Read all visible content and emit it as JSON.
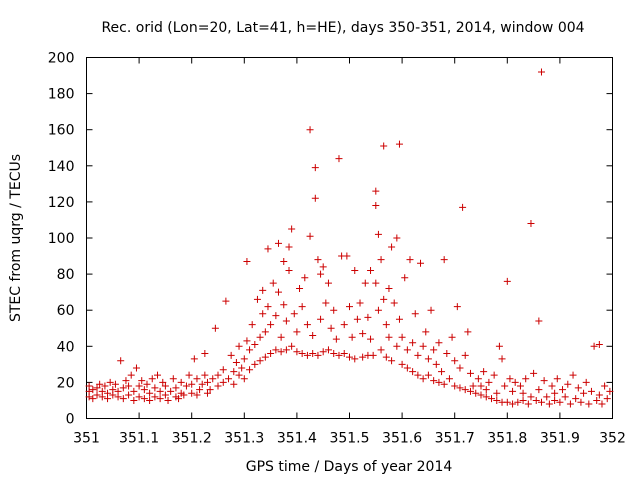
{
  "chart_data": {
    "type": "scatter",
    "title": "Rec. orid (Lon=20, Lat=41, h=HE), days 350-351, 2014, window 004",
    "xlabel": "GPS time / Days of year 2014",
    "ylabel": "STEC from uqrg / TECUs",
    "xlim": [
      351,
      352
    ],
    "ylim": [
      0,
      200
    ],
    "xticks": [
      "351",
      "351.1",
      "351.2",
      "351.3",
      "351.4",
      "351.5",
      "351.6",
      "351.7",
      "351.8",
      "351.9",
      "352"
    ],
    "yticks": [
      "0",
      "20",
      "40",
      "60",
      "80",
      "100",
      "120",
      "140",
      "160",
      "180",
      "200"
    ],
    "grid": false,
    "legend": "none",
    "marker": "plus",
    "color": "#cc0000",
    "points": [
      [
        351.005,
        12
      ],
      [
        351.005,
        15
      ],
      [
        351.005,
        18
      ],
      [
        351.012,
        11
      ],
      [
        351.012,
        16
      ],
      [
        351.02,
        13
      ],
      [
        351.02,
        17
      ],
      [
        351.025,
        19
      ],
      [
        351.03,
        12
      ],
      [
        351.03,
        15
      ],
      [
        351.035,
        18
      ],
      [
        351.04,
        11
      ],
      [
        351.04,
        14
      ],
      [
        351.045,
        20
      ],
      [
        351.05,
        13
      ],
      [
        351.05,
        16
      ],
      [
        351.055,
        19
      ],
      [
        351.06,
        12
      ],
      [
        351.06,
        15
      ],
      [
        351.065,
        32
      ],
      [
        351.07,
        11
      ],
      [
        351.07,
        17
      ],
      [
        351.075,
        21
      ],
      [
        351.08,
        13
      ],
      [
        351.08,
        18
      ],
      [
        351.085,
        24
      ],
      [
        351.09,
        10
      ],
      [
        351.09,
        15
      ],
      [
        351.095,
        28
      ],
      [
        351.1,
        12
      ],
      [
        351.1,
        18
      ],
      [
        351.105,
        21
      ],
      [
        351.11,
        11
      ],
      [
        351.11,
        16
      ],
      [
        351.115,
        19
      ],
      [
        351.12,
        10
      ],
      [
        351.12,
        14
      ],
      [
        351.125,
        22
      ],
      [
        351.13,
        12
      ],
      [
        351.13,
        17
      ],
      [
        351.135,
        24
      ],
      [
        351.14,
        11
      ],
      [
        351.14,
        15
      ],
      [
        351.145,
        20
      ],
      [
        351.15,
        13
      ],
      [
        351.15,
        18
      ],
      [
        351.155,
        10
      ],
      [
        351.16,
        15
      ],
      [
        351.165,
        22
      ],
      [
        351.17,
        12
      ],
      [
        351.17,
        17
      ],
      [
        351.175,
        11
      ],
      [
        351.18,
        14
      ],
      [
        351.18,
        20
      ],
      [
        351.185,
        13
      ],
      [
        351.19,
        18
      ],
      [
        351.195,
        24
      ],
      [
        351.2,
        14
      ],
      [
        351.2,
        19
      ],
      [
        351.205,
        33
      ],
      [
        351.21,
        13
      ],
      [
        351.21,
        22
      ],
      [
        351.215,
        16
      ],
      [
        351.22,
        19
      ],
      [
        351.225,
        36
      ],
      [
        351.225,
        24
      ],
      [
        351.23,
        14
      ],
      [
        351.23,
        20
      ],
      [
        351.235,
        16
      ],
      [
        351.24,
        22
      ],
      [
        351.245,
        50
      ],
      [
        351.25,
        18
      ],
      [
        351.25,
        24
      ],
      [
        351.26,
        20
      ],
      [
        351.26,
        27
      ],
      [
        351.265,
        65
      ],
      [
        351.27,
        22
      ],
      [
        351.275,
        35
      ],
      [
        351.28,
        19
      ],
      [
        351.28,
        26
      ],
      [
        351.285,
        31
      ],
      [
        351.29,
        24
      ],
      [
        351.29,
        40
      ],
      [
        351.295,
        28
      ],
      [
        351.3,
        22
      ],
      [
        351.3,
        33
      ],
      [
        351.305,
        87
      ],
      [
        351.305,
        43
      ],
      [
        351.31,
        27
      ],
      [
        351.31,
        38
      ],
      [
        351.315,
        52
      ],
      [
        351.32,
        30
      ],
      [
        351.32,
        41
      ],
      [
        351.325,
        66
      ],
      [
        351.33,
        32
      ],
      [
        351.33,
        45
      ],
      [
        351.335,
        58
      ],
      [
        351.335,
        71
      ],
      [
        351.34,
        34
      ],
      [
        351.34,
        48
      ],
      [
        351.345,
        94
      ],
      [
        351.345,
        62
      ],
      [
        351.35,
        36
      ],
      [
        351.35,
        52
      ],
      [
        351.355,
        75
      ],
      [
        351.36,
        38
      ],
      [
        351.36,
        57
      ],
      [
        351.365,
        97
      ],
      [
        351.365,
        70
      ],
      [
        351.37,
        37
      ],
      [
        351.37,
        45
      ],
      [
        351.375,
        87
      ],
      [
        351.375,
        63
      ],
      [
        351.38,
        38
      ],
      [
        351.38,
        54
      ],
      [
        351.385,
        95
      ],
      [
        351.385,
        82
      ],
      [
        351.39,
        105
      ],
      [
        351.39,
        40
      ],
      [
        351.395,
        58
      ],
      [
        351.4,
        37
      ],
      [
        351.4,
        48
      ],
      [
        351.405,
        72
      ],
      [
        351.41,
        36
      ],
      [
        351.41,
        62
      ],
      [
        351.415,
        78
      ],
      [
        351.42,
        35
      ],
      [
        351.42,
        52
      ],
      [
        351.425,
        160
      ],
      [
        351.425,
        101
      ],
      [
        351.43,
        36
      ],
      [
        351.43,
        46
      ],
      [
        351.435,
        139
      ],
      [
        351.435,
        122
      ],
      [
        351.44,
        35
      ],
      [
        351.44,
        88
      ],
      [
        351.445,
        80
      ],
      [
        351.445,
        55
      ],
      [
        351.45,
        37
      ],
      [
        351.45,
        84
      ],
      [
        351.455,
        64
      ],
      [
        351.46,
        38
      ],
      [
        351.46,
        75
      ],
      [
        351.465,
        50
      ],
      [
        351.47,
        36
      ],
      [
        351.47,
        60
      ],
      [
        351.475,
        44
      ],
      [
        351.48,
        144
      ],
      [
        351.48,
        35
      ],
      [
        351.485,
        90
      ],
      [
        351.49,
        36
      ],
      [
        351.49,
        52
      ],
      [
        351.495,
        90
      ],
      [
        351.5,
        34
      ],
      [
        351.5,
        62
      ],
      [
        351.505,
        45
      ],
      [
        351.51,
        82
      ],
      [
        351.51,
        33
      ],
      [
        351.515,
        55
      ],
      [
        351.52,
        64
      ],
      [
        351.525,
        34
      ],
      [
        351.525,
        47
      ],
      [
        351.53,
        75
      ],
      [
        351.535,
        35
      ],
      [
        351.535,
        56
      ],
      [
        351.54,
        82
      ],
      [
        351.54,
        44
      ],
      [
        351.545,
        35
      ],
      [
        351.55,
        126
      ],
      [
        351.55,
        118
      ],
      [
        351.55,
        75
      ],
      [
        351.555,
        102
      ],
      [
        351.555,
        60
      ],
      [
        351.56,
        38
      ],
      [
        351.56,
        88
      ],
      [
        351.565,
        151
      ],
      [
        351.565,
        66
      ],
      [
        351.57,
        34
      ],
      [
        351.57,
        52
      ],
      [
        351.575,
        72
      ],
      [
        351.575,
        45
      ],
      [
        351.58,
        95
      ],
      [
        351.58,
        32
      ],
      [
        351.585,
        64
      ],
      [
        351.59,
        100
      ],
      [
        351.59,
        40
      ],
      [
        351.595,
        152
      ],
      [
        351.595,
        55
      ],
      [
        351.6,
        30
      ],
      [
        351.6,
        45
      ],
      [
        351.605,
        78
      ],
      [
        351.61,
        28
      ],
      [
        351.61,
        38
      ],
      [
        351.615,
        88
      ],
      [
        351.62,
        26
      ],
      [
        351.62,
        42
      ],
      [
        351.625,
        58
      ],
      [
        351.63,
        24
      ],
      [
        351.63,
        35
      ],
      [
        351.635,
        86
      ],
      [
        351.64,
        22
      ],
      [
        351.64,
        40
      ],
      [
        351.645,
        48
      ],
      [
        351.65,
        24
      ],
      [
        351.65,
        33
      ],
      [
        351.655,
        60
      ],
      [
        351.66,
        21
      ],
      [
        351.66,
        38
      ],
      [
        351.665,
        30
      ],
      [
        351.67,
        20
      ],
      [
        351.67,
        42
      ],
      [
        351.675,
        26
      ],
      [
        351.68,
        88
      ],
      [
        351.68,
        19
      ],
      [
        351.685,
        36
      ],
      [
        351.69,
        22
      ],
      [
        351.695,
        45
      ],
      [
        351.7,
        18
      ],
      [
        351.7,
        32
      ],
      [
        351.705,
        62
      ],
      [
        351.71,
        17
      ],
      [
        351.71,
        28
      ],
      [
        351.715,
        117
      ],
      [
        351.72,
        16
      ],
      [
        351.72,
        35
      ],
      [
        351.725,
        48
      ],
      [
        351.73,
        15
      ],
      [
        351.73,
        25
      ],
      [
        351.735,
        18
      ],
      [
        351.74,
        14
      ],
      [
        351.745,
        22
      ],
      [
        351.75,
        13
      ],
      [
        351.75,
        18
      ],
      [
        351.755,
        26
      ],
      [
        351.76,
        12
      ],
      [
        351.76,
        16
      ],
      [
        351.765,
        20
      ],
      [
        351.77,
        11
      ],
      [
        351.775,
        24
      ],
      [
        351.78,
        10
      ],
      [
        351.78,
        14
      ],
      [
        351.785,
        40
      ],
      [
        351.79,
        9
      ],
      [
        351.79,
        33
      ],
      [
        351.795,
        18
      ],
      [
        351.8,
        76
      ],
      [
        351.8,
        9
      ],
      [
        351.805,
        22
      ],
      [
        351.81,
        8
      ],
      [
        351.81,
        15
      ],
      [
        351.815,
        20
      ],
      [
        351.82,
        9
      ],
      [
        351.825,
        18
      ],
      [
        351.83,
        10
      ],
      [
        351.83,
        14
      ],
      [
        351.835,
        22
      ],
      [
        351.84,
        8
      ],
      [
        351.845,
        108
      ],
      [
        351.845,
        12
      ],
      [
        351.85,
        25
      ],
      [
        351.855,
        10
      ],
      [
        351.86,
        54
      ],
      [
        351.86,
        16
      ],
      [
        351.865,
        192
      ],
      [
        351.865,
        9
      ],
      [
        351.87,
        21
      ],
      [
        351.875,
        12
      ],
      [
        351.88,
        8
      ],
      [
        351.885,
        18
      ],
      [
        351.89,
        10
      ],
      [
        351.89,
        14
      ],
      [
        351.895,
        22
      ],
      [
        351.9,
        9
      ],
      [
        351.905,
        16
      ],
      [
        351.91,
        12
      ],
      [
        351.915,
        19
      ],
      [
        351.92,
        8
      ],
      [
        351.925,
        24
      ],
      [
        351.93,
        11
      ],
      [
        351.935,
        17
      ],
      [
        351.94,
        9
      ],
      [
        351.945,
        14
      ],
      [
        351.95,
        20
      ],
      [
        351.955,
        8
      ],
      [
        351.96,
        15
      ],
      [
        351.965,
        40
      ],
      [
        351.97,
        10
      ],
      [
        351.975,
        41
      ],
      [
        351.975,
        13
      ],
      [
        351.98,
        8
      ],
      [
        351.985,
        18
      ],
      [
        351.99,
        11
      ],
      [
        351.995,
        15
      ]
    ]
  }
}
